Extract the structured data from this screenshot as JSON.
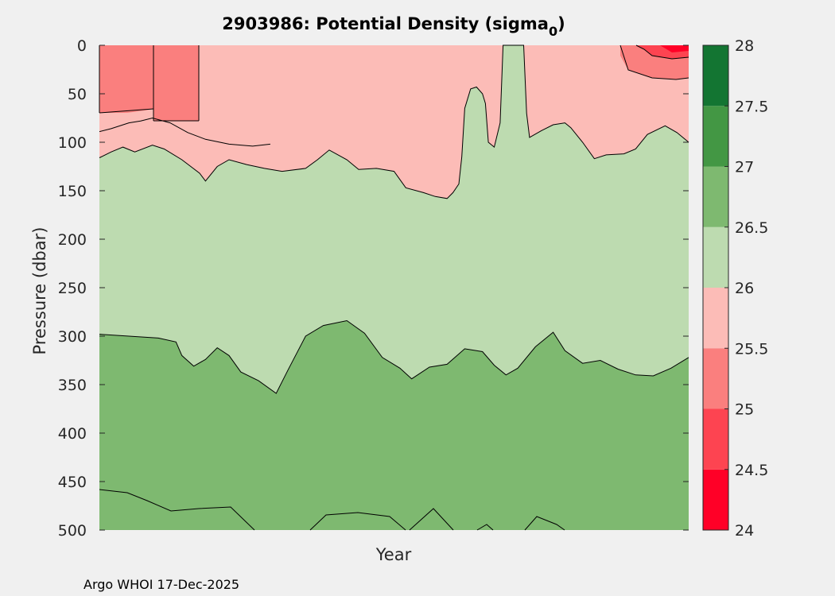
{
  "chart_data": {
    "type": "contourf",
    "title": "2903986: Potential Density (sigma",
    "title_subscript": "0",
    "title_suffix": ")",
    "xlabel": "Year",
    "ylabel": "Pressure (dbar)",
    "ylim": [
      0,
      500
    ],
    "y_reversed": true,
    "y_ticks": [
      0,
      50,
      100,
      150,
      200,
      250,
      300,
      350,
      400,
      450,
      500
    ],
    "y_tick_labels": [
      "0",
      "50",
      "100",
      "150",
      "200",
      "250",
      "300",
      "350",
      "400",
      "450",
      "500"
    ],
    "colorbar": {
      "range": [
        24,
        28
      ],
      "levels": [
        24,
        24.5,
        25,
        25.5,
        26,
        26.5,
        27,
        27.5,
        28
      ],
      "tick_labels": [
        "24",
        "24.5",
        "25",
        "25.5",
        "26",
        "26.5",
        "27",
        "27.5",
        "28"
      ],
      "colors": [
        "#ff0027",
        "#fd4451",
        "#fa7f7e",
        "#fcbcb7",
        "#bddbb0",
        "#7eb970",
        "#439744",
        "#137532"
      ]
    },
    "bands_top_to_bottom": [
      {
        "range": "25.5-26",
        "color": "#fcbcb7"
      },
      {
        "range": "26-26.5",
        "color": "#bddbb0"
      },
      {
        "range": "26.5-27",
        "color": "#7eb970"
      }
    ],
    "isopycnals": [
      {
        "level": 25.5,
        "series": [
          {
            "x": 0.0,
            "p": 89
          },
          {
            "x": 0.02,
            "p": 86
          },
          {
            "x": 0.05,
            "p": 80
          },
          {
            "x": 0.07,
            "p": 78
          },
          {
            "x": 0.09,
            "p": 75
          },
          {
            "x": 0.12,
            "p": 80
          },
          {
            "x": 0.15,
            "p": 90
          },
          {
            "x": 0.18,
            "p": 97
          },
          {
            "x": 0.22,
            "p": 102
          },
          {
            "x": 0.26,
            "p": 104
          },
          {
            "x": 0.29,
            "p": 102
          }
        ]
      },
      {
        "level": 26.0,
        "series": [
          {
            "x": 0.0,
            "p": 116
          },
          {
            "x": 0.02,
            "p": 110
          },
          {
            "x": 0.04,
            "p": 105
          },
          {
            "x": 0.06,
            "p": 110
          },
          {
            "x": 0.09,
            "p": 103
          },
          {
            "x": 0.11,
            "p": 107
          },
          {
            "x": 0.14,
            "p": 118
          },
          {
            "x": 0.17,
            "p": 132
          },
          {
            "x": 0.18,
            "p": 140
          },
          {
            "x": 0.2,
            "p": 125
          },
          {
            "x": 0.22,
            "p": 118
          },
          {
            "x": 0.25,
            "p": 123
          },
          {
            "x": 0.28,
            "p": 127
          },
          {
            "x": 0.31,
            "p": 130
          },
          {
            "x": 0.35,
            "p": 127
          },
          {
            "x": 0.37,
            "p": 118
          },
          {
            "x": 0.39,
            "p": 108
          },
          {
            "x": 0.42,
            "p": 118
          },
          {
            "x": 0.44,
            "p": 128
          },
          {
            "x": 0.47,
            "p": 127
          },
          {
            "x": 0.5,
            "p": 130
          },
          {
            "x": 0.52,
            "p": 147
          },
          {
            "x": 0.55,
            "p": 152
          },
          {
            "x": 0.57,
            "p": 156
          },
          {
            "x": 0.59,
            "p": 158
          },
          {
            "x": 0.6,
            "p": 152
          },
          {
            "x": 0.61,
            "p": 143
          },
          {
            "x": 0.615,
            "p": 115
          },
          {
            "x": 0.62,
            "p": 65
          },
          {
            "x": 0.63,
            "p": 45
          },
          {
            "x": 0.64,
            "p": 43
          },
          {
            "x": 0.65,
            "p": 50
          },
          {
            "x": 0.655,
            "p": 60
          },
          {
            "x": 0.66,
            "p": 100
          },
          {
            "x": 0.67,
            "p": 105
          },
          {
            "x": 0.68,
            "p": 80
          },
          {
            "x": 0.685,
            "p": 0
          },
          {
            "x": 0.72,
            "p": 0
          },
          {
            "x": 0.725,
            "p": 70
          },
          {
            "x": 0.73,
            "p": 95
          },
          {
            "x": 0.75,
            "p": 88
          },
          {
            "x": 0.77,
            "p": 82
          },
          {
            "x": 0.79,
            "p": 80
          },
          {
            "x": 0.8,
            "p": 85
          },
          {
            "x": 0.82,
            "p": 100
          },
          {
            "x": 0.84,
            "p": 117
          },
          {
            "x": 0.86,
            "p": 113
          },
          {
            "x": 0.89,
            "p": 112
          },
          {
            "x": 0.91,
            "p": 107
          },
          {
            "x": 0.93,
            "p": 92
          },
          {
            "x": 0.96,
            "p": 83
          },
          {
            "x": 0.98,
            "p": 90
          },
          {
            "x": 1.0,
            "p": 100
          }
        ]
      },
      {
        "level": 26.5,
        "series": [
          {
            "x": 0.0,
            "p": 298
          },
          {
            "x": 0.05,
            "p": 300
          },
          {
            "x": 0.1,
            "p": 302
          },
          {
            "x": 0.13,
            "p": 306
          },
          {
            "x": 0.14,
            "p": 320
          },
          {
            "x": 0.16,
            "p": 331
          },
          {
            "x": 0.18,
            "p": 324
          },
          {
            "x": 0.2,
            "p": 312
          },
          {
            "x": 0.22,
            "p": 320
          },
          {
            "x": 0.24,
            "p": 337
          },
          {
            "x": 0.27,
            "p": 346
          },
          {
            "x": 0.3,
            "p": 359
          },
          {
            "x": 0.32,
            "p": 335
          },
          {
            "x": 0.35,
            "p": 300
          },
          {
            "x": 0.38,
            "p": 289
          },
          {
            "x": 0.42,
            "p": 284
          },
          {
            "x": 0.45,
            "p": 297
          },
          {
            "x": 0.48,
            "p": 322
          },
          {
            "x": 0.51,
            "p": 333
          },
          {
            "x": 0.53,
            "p": 344
          },
          {
            "x": 0.56,
            "p": 332
          },
          {
            "x": 0.59,
            "p": 329
          },
          {
            "x": 0.62,
            "p": 313
          },
          {
            "x": 0.65,
            "p": 316
          },
          {
            "x": 0.67,
            "p": 330
          },
          {
            "x": 0.69,
            "p": 340
          },
          {
            "x": 0.71,
            "p": 333
          },
          {
            "x": 0.74,
            "p": 311
          },
          {
            "x": 0.77,
            "p": 296
          },
          {
            "x": 0.79,
            "p": 315
          },
          {
            "x": 0.82,
            "p": 328
          },
          {
            "x": 0.85,
            "p": 325
          },
          {
            "x": 0.88,
            "p": 334
          },
          {
            "x": 0.91,
            "p": 340
          },
          {
            "x": 0.94,
            "p": 341
          },
          {
            "x": 0.97,
            "p": 333
          },
          {
            "x": 1.0,
            "p": 322
          }
        ]
      }
    ]
  },
  "footer": {
    "credit": "Argo WHOI 17-Dec-2025"
  }
}
